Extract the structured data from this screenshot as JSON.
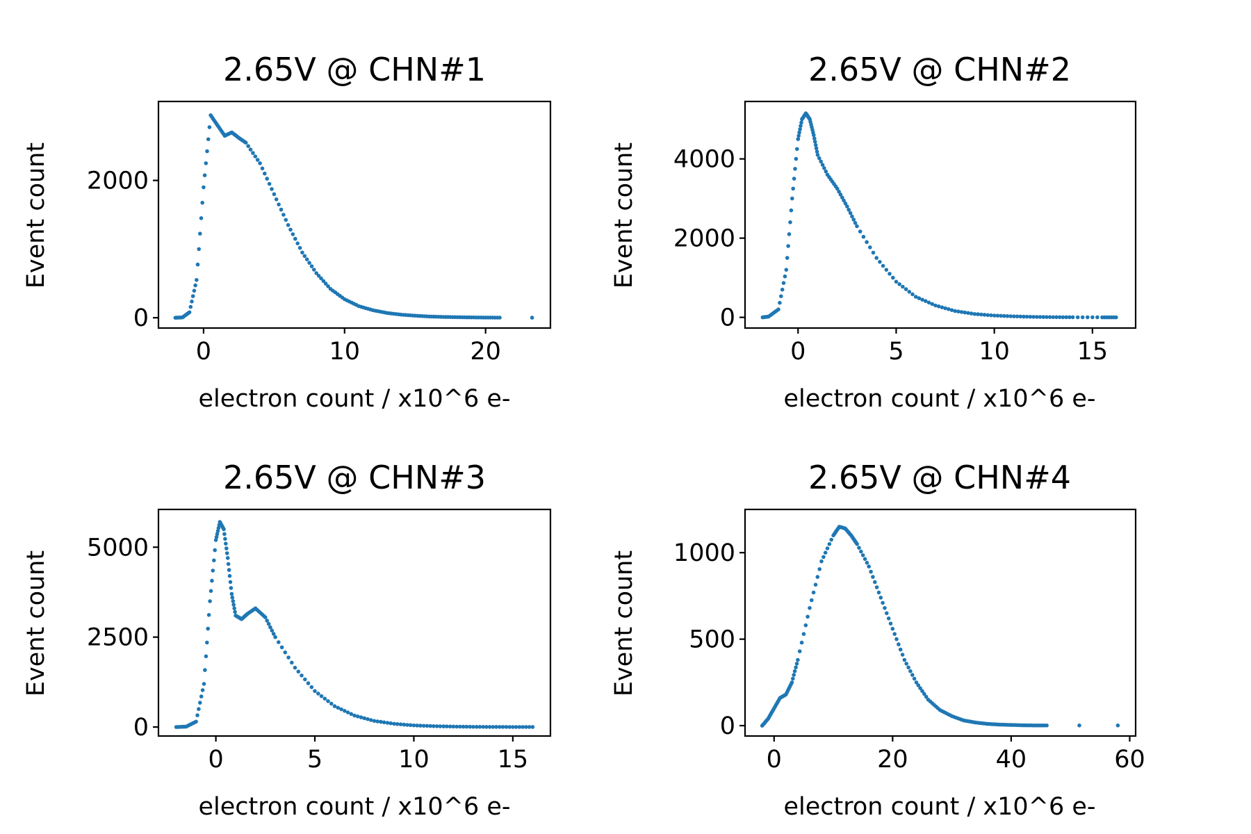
{
  "chart_data": [
    {
      "type": "scatter",
      "title": "2.65V  @ CHN#1",
      "xlabel": "electron count / x10^6 e-",
      "ylabel": "Event count",
      "xlim": [
        -3.2,
        24.6
      ],
      "ylim": [
        -150,
        3150
      ],
      "xticks": [
        0,
        10,
        20
      ],
      "yticks": [
        0,
        2000
      ],
      "color": "#1f77b4",
      "series": [
        {
          "x": [
            -2.0,
            -1.5,
            -1.0,
            -0.5,
            0.0,
            0.5,
            1.0,
            1.5,
            2.0,
            2.5,
            3.0,
            4.0,
            5.0,
            6.0,
            7.0,
            8.0,
            9.0,
            10.0,
            11.0,
            12.0,
            13.0,
            14.0,
            15.0,
            16.0,
            17.0,
            18.0,
            19.0,
            20.0,
            21.0,
            23.3
          ],
          "y": [
            0,
            5,
            80,
            550,
            1900,
            2950,
            2800,
            2650,
            2700,
            2620,
            2550,
            2250,
            1800,
            1350,
            950,
            650,
            420,
            270,
            170,
            110,
            70,
            45,
            30,
            18,
            12,
            8,
            5,
            3,
            2,
            1
          ]
        }
      ]
    },
    {
      "type": "scatter",
      "title": "2.65V  @ CHN#2",
      "xlabel": "electron count / x10^6 e-",
      "ylabel": "Event count",
      "xlim": [
        -2.7,
        17.2
      ],
      "ylim": [
        -270,
        5450
      ],
      "xticks": [
        0,
        5,
        10,
        15
      ],
      "yticks": [
        0,
        2000,
        4000
      ],
      "color": "#1f77b4",
      "series": [
        {
          "x": [
            -1.8,
            -1.5,
            -1.0,
            -0.6,
            -0.3,
            0.0,
            0.2,
            0.4,
            0.6,
            0.8,
            1.0,
            1.5,
            2.0,
            2.5,
            3.0,
            4.0,
            5.0,
            6.0,
            7.0,
            8.0,
            9.0,
            10.0,
            11.0,
            12.0,
            13.0,
            14.0,
            15.5,
            16.2
          ],
          "y": [
            0,
            20,
            200,
            1200,
            3000,
            4500,
            5000,
            5150,
            5000,
            4600,
            4100,
            3600,
            3250,
            2800,
            2300,
            1500,
            900,
            520,
            300,
            160,
            85,
            45,
            25,
            12,
            6,
            3,
            1,
            1
          ]
        }
      ]
    },
    {
      "type": "scatter",
      "title": "2.65V  @ CHN#3",
      "xlabel": "electron count / x10^6 e-",
      "ylabel": "Event count",
      "xlim": [
        -2.9,
        16.9
      ],
      "ylim": [
        -250,
        6050
      ],
      "xticks": [
        0,
        5,
        10,
        15
      ],
      "yticks": [
        0,
        2500,
        5000
      ],
      "color": "#1f77b4",
      "series": [
        {
          "x": [
            -2.0,
            -1.5,
            -1.0,
            -0.6,
            -0.3,
            0.0,
            0.2,
            0.4,
            0.6,
            0.8,
            1.0,
            1.3,
            1.6,
            2.0,
            2.5,
            3.0,
            4.0,
            5.0,
            6.0,
            7.0,
            8.0,
            9.0,
            10.0,
            11.0,
            12.0,
            13.0,
            14.0,
            15.0,
            16.0
          ],
          "y": [
            0,
            10,
            150,
            1200,
            3500,
            5200,
            5700,
            5500,
            4700,
            3700,
            3100,
            3000,
            3150,
            3300,
            3050,
            2500,
            1650,
            1000,
            580,
            320,
            170,
            90,
            45,
            25,
            12,
            6,
            3,
            2,
            1
          ]
        }
      ]
    },
    {
      "type": "scatter",
      "title": "2.65V  @ CHN#4",
      "xlabel": "electron count / x10^6 e-",
      "ylabel": "Event count",
      "xlim": [
        -4.9,
        61.0
      ],
      "ylim": [
        -60,
        1250
      ],
      "xticks": [
        0,
        20,
        40,
        60
      ],
      "yticks": [
        0,
        500,
        1000
      ],
      "color": "#1f77b4",
      "series": [
        {
          "x": [
            -2.0,
            -1.0,
            0.0,
            1.0,
            2.0,
            3.0,
            4.0,
            6.0,
            8.0,
            10.0,
            11.0,
            12.0,
            13.0,
            14.0,
            16.0,
            18.0,
            20.0,
            22.0,
            24.0,
            26.0,
            28.0,
            30.0,
            32.0,
            34.0,
            36.0,
            38.0,
            40.0,
            42.0,
            44.0,
            46.0,
            51.5,
            58.0
          ],
          "y": [
            0,
            40,
            100,
            160,
            180,
            250,
            380,
            680,
            950,
            1100,
            1150,
            1140,
            1100,
            1050,
            920,
            740,
            560,
            380,
            250,
            150,
            90,
            55,
            30,
            18,
            10,
            6,
            4,
            2,
            1,
            1,
            1,
            1
          ]
        }
      ]
    }
  ]
}
